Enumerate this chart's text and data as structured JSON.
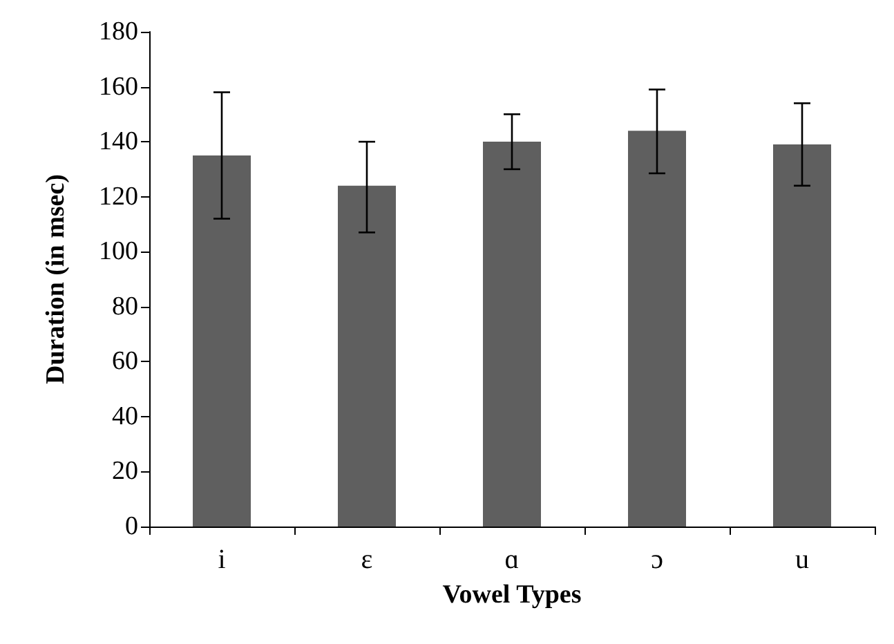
{
  "chart_data": {
    "type": "bar",
    "xlabel": "Vowel Types",
    "ylabel": "Duration (in msec)",
    "categories": [
      "i",
      "ɛ",
      "ɑ",
      "ɔ",
      "u"
    ],
    "values": [
      135,
      124,
      140,
      144,
      139
    ],
    "errors": [
      [
        112,
        158
      ],
      [
        107,
        140
      ],
      [
        130,
        150
      ],
      [
        128.5,
        159
      ],
      [
        124,
        154
      ]
    ],
    "color": "#5f5f5f",
    "ylim": [
      0,
      180
    ],
    "yticks": [
      0,
      20,
      40,
      60,
      80,
      100,
      120,
      140,
      160,
      180
    ],
    "grid": false
  }
}
